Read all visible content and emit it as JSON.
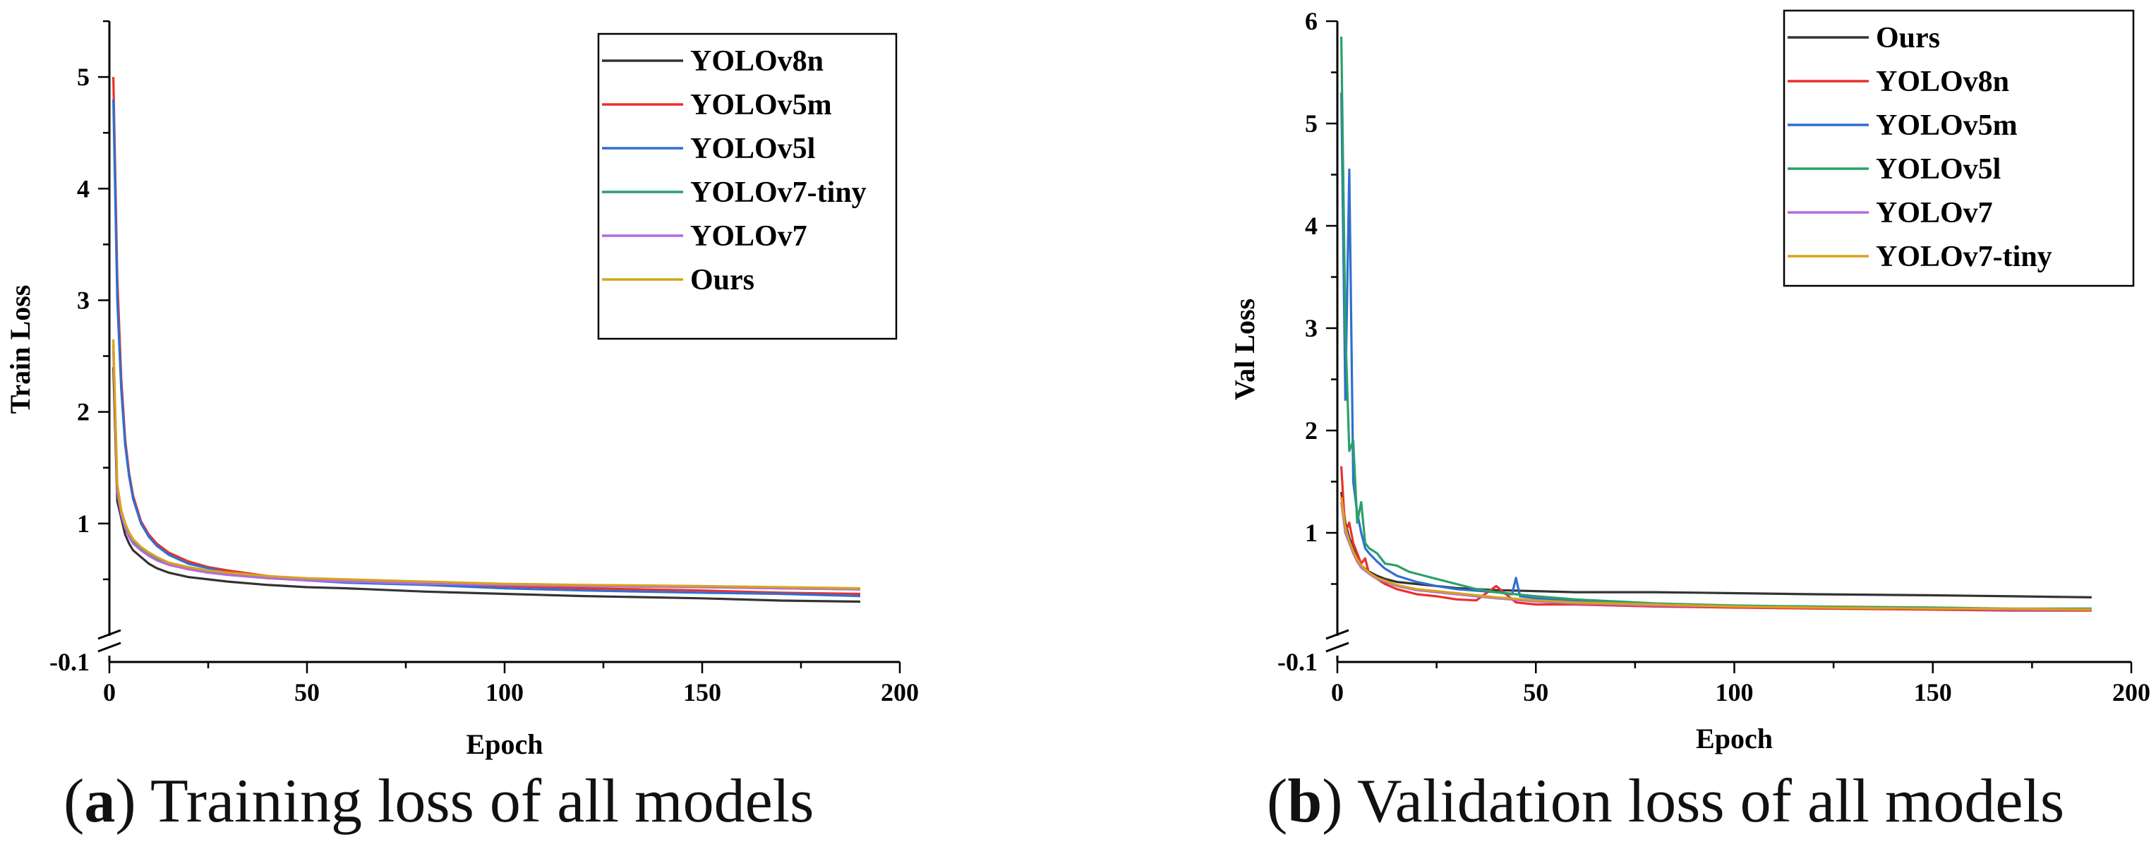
{
  "chart_data": [
    {
      "type": "line",
      "id": "train",
      "caption": {
        "letter": "a",
        "text": "Training loss of all models"
      },
      "xlabel": "Epoch",
      "ylabel": "Train  Loss",
      "xlim": [
        0,
        200
      ],
      "ylim": [
        -0.1,
        5.5
      ],
      "axis_break_label": "-0.1",
      "xticks": [
        0,
        50,
        100,
        150,
        200
      ],
      "yticks": [
        1,
        2,
        3,
        4,
        5
      ],
      "legend_position": "top-right",
      "series": [
        {
          "name": "YOLOv8n",
          "color": "#333333",
          "x": [
            1,
            2,
            3,
            4,
            5,
            6,
            8,
            10,
            12,
            15,
            20,
            25,
            30,
            40,
            50,
            60,
            80,
            100,
            120,
            150,
            170,
            190
          ],
          "y": [
            2.4,
            1.2,
            1.05,
            0.9,
            0.82,
            0.76,
            0.7,
            0.64,
            0.6,
            0.56,
            0.52,
            0.5,
            0.48,
            0.45,
            0.43,
            0.42,
            0.39,
            0.37,
            0.35,
            0.33,
            0.31,
            0.3
          ]
        },
        {
          "name": "YOLOv5m",
          "color": "#e8312b",
          "x": [
            1,
            2,
            3,
            4,
            5,
            6,
            8,
            10,
            12,
            15,
            20,
            25,
            30,
            40,
            50,
            60,
            80,
            100,
            120,
            150,
            170,
            190
          ],
          "y": [
            5.0,
            3.2,
            2.3,
            1.75,
            1.45,
            1.25,
            1.02,
            0.9,
            0.82,
            0.74,
            0.66,
            0.61,
            0.58,
            0.53,
            0.5,
            0.48,
            0.46,
            0.44,
            0.42,
            0.4,
            0.38,
            0.37
          ]
        },
        {
          "name": "YOLOv5l",
          "color": "#2f6fd0",
          "x": [
            1,
            2,
            3,
            4,
            5,
            6,
            8,
            10,
            12,
            15,
            20,
            25,
            30,
            40,
            50,
            60,
            80,
            100,
            120,
            150,
            170,
            190
          ],
          "y": [
            4.8,
            3.0,
            2.2,
            1.7,
            1.42,
            1.22,
            1.0,
            0.88,
            0.8,
            0.72,
            0.64,
            0.6,
            0.56,
            0.52,
            0.49,
            0.47,
            0.45,
            0.42,
            0.4,
            0.38,
            0.37,
            0.35
          ]
        },
        {
          "name": "YOLOv7-tiny",
          "color": "#2aa06a",
          "x": [
            1,
            2,
            3,
            4,
            5,
            6,
            8,
            10,
            12,
            15,
            20,
            25,
            30,
            40,
            50,
            60,
            80,
            100,
            120,
            150,
            170,
            190
          ],
          "y": [
            2.6,
            1.3,
            1.1,
            0.98,
            0.9,
            0.84,
            0.77,
            0.72,
            0.68,
            0.64,
            0.6,
            0.57,
            0.55,
            0.52,
            0.5,
            0.49,
            0.47,
            0.45,
            0.44,
            0.43,
            0.42,
            0.41
          ]
        },
        {
          "name": "YOLOv7",
          "color": "#b06be0",
          "x": [
            1,
            2,
            3,
            4,
            5,
            6,
            8,
            10,
            12,
            15,
            20,
            25,
            30,
            40,
            50,
            60,
            80,
            100,
            120,
            150,
            170,
            190
          ],
          "y": [
            2.55,
            1.28,
            1.08,
            0.96,
            0.88,
            0.82,
            0.76,
            0.71,
            0.67,
            0.63,
            0.59,
            0.56,
            0.54,
            0.51,
            0.49,
            0.48,
            0.46,
            0.45,
            0.44,
            0.43,
            0.42,
            0.41
          ]
        },
        {
          "name": "Ours",
          "color": "#d9a21b",
          "x": [
            1,
            2,
            3,
            4,
            5,
            6,
            8,
            10,
            12,
            15,
            20,
            25,
            30,
            40,
            50,
            60,
            80,
            100,
            120,
            150,
            170,
            190
          ],
          "y": [
            2.65,
            1.35,
            1.12,
            1.0,
            0.92,
            0.86,
            0.79,
            0.74,
            0.7,
            0.65,
            0.61,
            0.58,
            0.56,
            0.53,
            0.51,
            0.5,
            0.48,
            0.46,
            0.45,
            0.44,
            0.43,
            0.42
          ]
        }
      ]
    },
    {
      "type": "line",
      "id": "val",
      "caption": {
        "letter": "b",
        "text": "Validation loss of all models"
      },
      "xlabel": "Epoch",
      "ylabel": "Val  Loss",
      "xlim": [
        0,
        200
      ],
      "ylim": [
        -0.1,
        6
      ],
      "axis_break_label": "-0.1",
      "xticks": [
        0,
        50,
        100,
        150,
        200
      ],
      "yticks": [
        1,
        2,
        3,
        4,
        5,
        6
      ],
      "legend_position": "top-right",
      "series": [
        {
          "name": "Ours",
          "color": "#333333",
          "x": [
            1,
            2,
            3,
            4,
            5,
            6,
            7,
            8,
            10,
            12,
            15,
            20,
            25,
            30,
            40,
            50,
            60,
            80,
            100,
            120,
            150,
            170,
            190
          ],
          "y": [
            1.4,
            1.1,
            0.95,
            0.85,
            0.75,
            0.68,
            0.65,
            0.62,
            0.58,
            0.55,
            0.52,
            0.5,
            0.48,
            0.46,
            0.44,
            0.43,
            0.42,
            0.42,
            0.41,
            0.4,
            0.39,
            0.38,
            0.37
          ]
        },
        {
          "name": "YOLOv8n",
          "color": "#e8312b",
          "x": [
            1,
            2,
            3,
            4,
            5,
            6,
            7,
            8,
            10,
            12,
            15,
            18,
            20,
            25,
            30,
            35,
            40,
            45,
            50,
            60,
            80,
            100,
            120,
            150,
            170,
            190
          ],
          "y": [
            1.65,
            1.0,
            1.1,
            0.9,
            0.8,
            0.7,
            0.75,
            0.6,
            0.55,
            0.5,
            0.45,
            0.42,
            0.4,
            0.38,
            0.35,
            0.34,
            0.48,
            0.32,
            0.3,
            0.3,
            0.28,
            0.27,
            0.26,
            0.25,
            0.24,
            0.24
          ]
        },
        {
          "name": "YOLOv5m",
          "color": "#2f6fd0",
          "x": [
            1,
            2,
            3,
            4,
            5,
            6,
            7,
            8,
            10,
            12,
            15,
            20,
            25,
            30,
            40,
            44,
            45,
            46,
            50,
            60,
            80,
            100,
            120,
            150,
            170,
            190
          ],
          "y": [
            5.3,
            2.3,
            4.55,
            1.5,
            1.2,
            1.0,
            0.85,
            0.8,
            0.72,
            0.65,
            0.58,
            0.52,
            0.48,
            0.45,
            0.42,
            0.4,
            0.56,
            0.38,
            0.36,
            0.34,
            0.3,
            0.28,
            0.27,
            0.26,
            0.25,
            0.25
          ]
        },
        {
          "name": "YOLOv5l",
          "color": "#2aa06a",
          "x": [
            1,
            2,
            3,
            4,
            5,
            6,
            7,
            8,
            10,
            12,
            15,
            18,
            20,
            25,
            30,
            35,
            40,
            50,
            60,
            80,
            100,
            120,
            150,
            170,
            190
          ],
          "y": [
            5.85,
            3.0,
            1.8,
            1.9,
            1.1,
            1.3,
            0.9,
            0.85,
            0.8,
            0.7,
            0.68,
            0.62,
            0.6,
            0.55,
            0.5,
            0.45,
            0.42,
            0.38,
            0.35,
            0.31,
            0.29,
            0.28,
            0.27,
            0.26,
            0.26
          ]
        },
        {
          "name": "YOLOv7",
          "color": "#b06be0",
          "x": [
            1,
            2,
            3,
            4,
            5,
            6,
            8,
            10,
            15,
            20,
            30,
            40,
            50,
            60,
            80,
            100,
            120,
            150,
            170,
            190
          ],
          "y": [
            1.3,
            1.0,
            0.9,
            0.8,
            0.72,
            0.66,
            0.6,
            0.55,
            0.48,
            0.44,
            0.4,
            0.36,
            0.33,
            0.31,
            0.29,
            0.28,
            0.27,
            0.26,
            0.25,
            0.25
          ]
        },
        {
          "name": "YOLOv7-tiny",
          "color": "#d9a21b",
          "x": [
            1,
            2,
            3,
            4,
            5,
            6,
            8,
            10,
            15,
            20,
            30,
            40,
            50,
            60,
            80,
            100,
            120,
            150,
            170,
            190
          ],
          "y": [
            1.35,
            1.05,
            0.92,
            0.82,
            0.74,
            0.68,
            0.61,
            0.56,
            0.49,
            0.45,
            0.41,
            0.37,
            0.34,
            0.32,
            0.3,
            0.28,
            0.27,
            0.26,
            0.26,
            0.25
          ]
        }
      ]
    }
  ]
}
